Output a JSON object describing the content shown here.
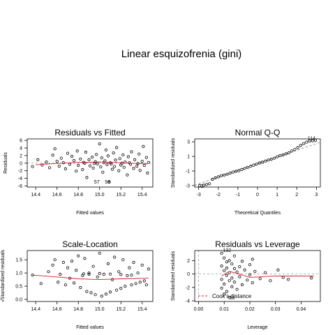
{
  "figure_title": "Linear esquizofrenia (gini)",
  "chart_data": [
    {
      "type": "scatter",
      "title": "Residuals vs Fitted",
      "xlabel": "Fitted values",
      "ylabel": "Residuals",
      "xlim": [
        14.32,
        15.5
      ],
      "ylim": [
        -6.3,
        6.4
      ],
      "xticks": [
        "14.4",
        "14.6",
        "14.8",
        "15.0",
        "15.2",
        "15.4"
      ],
      "xtick_values": [
        14.4,
        14.6,
        14.8,
        15.0,
        15.2,
        15.4
      ],
      "yticks": [
        "-6",
        "-4",
        "-2",
        "0",
        "2",
        "4",
        "6"
      ],
      "ytick_values": [
        -6,
        -4,
        -2,
        0,
        2,
        4,
        6
      ],
      "reference_line": 0,
      "point_labels": [
        "57",
        "58"
      ],
      "smooth_line": [
        [
          14.4,
          -0.4
        ],
        [
          14.6,
          -0.1
        ],
        [
          14.8,
          0.2
        ],
        [
          15.0,
          0.3
        ],
        [
          15.2,
          0.1
        ],
        [
          15.45,
          -0.2
        ]
      ],
      "points": [
        [
          14.37,
          -0.9
        ],
        [
          14.42,
          0.9
        ],
        [
          14.46,
          -0.5
        ],
        [
          14.5,
          0.3
        ],
        [
          14.53,
          -1.2
        ],
        [
          14.56,
          2.1
        ],
        [
          14.58,
          3.8
        ],
        [
          14.6,
          0.5
        ],
        [
          14.62,
          -0.8
        ],
        [
          14.64,
          1.3
        ],
        [
          14.66,
          0.1
        ],
        [
          14.68,
          -1.5
        ],
        [
          14.7,
          2.6
        ],
        [
          14.72,
          -0.3
        ],
        [
          14.74,
          1.8
        ],
        [
          14.76,
          0.7
        ],
        [
          14.78,
          -2.1
        ],
        [
          14.79,
          3.2
        ],
        [
          14.8,
          -0.6
        ],
        [
          14.82,
          1.1
        ],
        [
          14.84,
          -1.7
        ],
        [
          14.85,
          0.2
        ],
        [
          14.87,
          2.9
        ],
        [
          14.88,
          -3.8
        ],
        [
          14.9,
          0.9
        ],
        [
          14.91,
          -0.7
        ],
        [
          14.93,
          1.6
        ],
        [
          14.94,
          -1.3
        ],
        [
          14.96,
          0.4
        ],
        [
          14.97,
          2.3
        ],
        [
          14.98,
          -0.2
        ],
        [
          15.0,
          5.1
        ],
        [
          15.01,
          -1.0
        ],
        [
          15.02,
          1.4
        ],
        [
          15.03,
          -2.4
        ],
        [
          15.05,
          0.6
        ],
        [
          15.06,
          3.5
        ],
        [
          15.07,
          -0.4
        ],
        [
          15.08,
          1.9
        ],
        [
          15.09,
          -5.0
        ],
        [
          15.1,
          0.1
        ],
        [
          15.12,
          -1.6
        ],
        [
          15.13,
          2.7
        ],
        [
          15.14,
          -0.9
        ],
        [
          15.15,
          0.8
        ],
        [
          15.16,
          4.1
        ],
        [
          15.18,
          -2.0
        ],
        [
          15.19,
          1.2
        ],
        [
          15.2,
          -0.5
        ],
        [
          15.22,
          2.2
        ],
        [
          15.23,
          -1.1
        ],
        [
          15.24,
          0.3
        ],
        [
          15.26,
          -3.1
        ],
        [
          15.27,
          1.7
        ],
        [
          15.29,
          -0.3
        ],
        [
          15.3,
          3.0
        ],
        [
          15.32,
          -1.4
        ],
        [
          15.33,
          0.9
        ],
        [
          15.35,
          -0.8
        ],
        [
          15.37,
          2.4
        ],
        [
          15.38,
          -1.9
        ],
        [
          15.4,
          0.5
        ],
        [
          15.41,
          4.4
        ],
        [
          15.42,
          -0.6
        ],
        [
          15.44,
          1.5
        ],
        [
          15.45,
          -2.6
        ],
        [
          15.46,
          0.2
        ],
        [
          14.86,
          0.0
        ],
        [
          14.95,
          -0.1
        ],
        [
          15.04,
          0.1
        ],
        [
          15.11,
          -0.2
        ],
        [
          15.21,
          0.0
        ],
        [
          15.28,
          0.1
        ],
        [
          15.36,
          -0.1
        ]
      ]
    },
    {
      "type": "scatter",
      "title": "Normal Q-Q",
      "xlabel": "Theoretical Quantiles",
      "ylabel": "Standardized residuals",
      "xlim": [
        -3.2,
        3.2
      ],
      "ylim": [
        -3.2,
        3.4
      ],
      "xticks": [
        "-3",
        "-2",
        "-1",
        "0",
        "1",
        "2",
        "3"
      ],
      "xtick_values": [
        -3,
        -2,
        -1,
        0,
        1,
        2,
        3
      ],
      "yticks": [
        "-3",
        "-1",
        "1",
        "3"
      ],
      "ytick_values": [
        -3,
        -1,
        1,
        3
      ],
      "reference_line": "y = 0.92x",
      "point_labels": [
        "2",
        "114"
      ],
      "points": [
        [
          -2.95,
          -3.0
        ],
        [
          -2.75,
          -2.95
        ],
        [
          -2.6,
          -2.85
        ],
        [
          -2.45,
          -2.75
        ],
        [
          -2.3,
          -2.15
        ],
        [
          -2.15,
          -1.95
        ],
        [
          -2.0,
          -1.8
        ],
        [
          -1.85,
          -1.65
        ],
        [
          -1.7,
          -1.55
        ],
        [
          -1.55,
          -1.45
        ],
        [
          -1.4,
          -1.3
        ],
        [
          -1.25,
          -1.15
        ],
        [
          -1.1,
          -1.05
        ],
        [
          -0.95,
          -0.95
        ],
        [
          -0.8,
          -0.8
        ],
        [
          -0.65,
          -0.65
        ],
        [
          -0.5,
          -0.5
        ],
        [
          -0.35,
          -0.35
        ],
        [
          -0.2,
          -0.2
        ],
        [
          -0.05,
          -0.05
        ],
        [
          0.1,
          0.1
        ],
        [
          0.25,
          0.2
        ],
        [
          0.4,
          0.35
        ],
        [
          0.55,
          0.5
        ],
        [
          0.7,
          0.6
        ],
        [
          0.85,
          0.75
        ],
        [
          1.0,
          0.95
        ],
        [
          1.15,
          1.1
        ],
        [
          1.3,
          1.2
        ],
        [
          1.45,
          1.35
        ],
        [
          1.6,
          1.5
        ],
        [
          1.75,
          1.75
        ],
        [
          1.9,
          1.95
        ],
        [
          2.05,
          2.2
        ],
        [
          2.2,
          2.5
        ],
        [
          2.35,
          2.75
        ],
        [
          2.5,
          2.95
        ],
        [
          2.65,
          3.1
        ],
        [
          2.8,
          3.15
        ],
        [
          2.95,
          3.2
        ]
      ]
    },
    {
      "type": "scatter",
      "title": "Scale-Location",
      "xlabel": "Fitted values",
      "ylabel": "√Standardized residuals",
      "xlim": [
        14.32,
        15.5
      ],
      "ylim": [
        -0.08,
        1.85
      ],
      "xticks": [
        "14.4",
        "14.6",
        "14.8",
        "15.0",
        "15.2",
        "15.4"
      ],
      "xtick_values": [
        14.4,
        14.6,
        14.8,
        15.0,
        15.2,
        15.4
      ],
      "yticks": [
        "0.0",
        "0.5",
        "1.0",
        "1.5"
      ],
      "ytick_values": [
        0.0,
        0.5,
        1.0,
        1.5
      ],
      "smooth_line": [
        [
          14.37,
          0.92
        ],
        [
          14.6,
          0.85
        ],
        [
          14.8,
          0.78
        ],
        [
          15.0,
          0.75
        ],
        [
          15.2,
          0.78
        ],
        [
          15.46,
          0.8
        ]
      ],
      "points": [
        [
          14.37,
          0.92
        ],
        [
          14.45,
          0.6
        ],
        [
          14.52,
          1.05
        ],
        [
          14.56,
          1.3
        ],
        [
          14.58,
          1.5
        ],
        [
          14.61,
          0.65
        ],
        [
          14.63,
          0.95
        ],
        [
          14.66,
          1.4
        ],
        [
          14.68,
          0.55
        ],
        [
          14.7,
          1.2
        ],
        [
          14.72,
          0.8
        ],
        [
          14.74,
          1.45
        ],
        [
          14.76,
          0.62
        ],
        [
          14.78,
          1.1
        ],
        [
          14.8,
          1.65
        ],
        [
          14.82,
          0.45
        ],
        [
          14.84,
          0.9
        ],
        [
          14.86,
          1.55
        ],
        [
          14.88,
          0.3
        ],
        [
          14.9,
          1.0
        ],
        [
          14.92,
          0.25
        ],
        [
          14.94,
          1.25
        ],
        [
          14.96,
          0.18
        ],
        [
          14.98,
          0.85
        ],
        [
          15.0,
          1.75
        ],
        [
          15.02,
          0.12
        ],
        [
          15.04,
          0.95
        ],
        [
          15.06,
          0.2
        ],
        [
          15.08,
          1.35
        ],
        [
          15.1,
          0.28
        ],
        [
          15.12,
          0.75
        ],
        [
          15.14,
          1.6
        ],
        [
          15.16,
          0.35
        ],
        [
          15.18,
          1.05
        ],
        [
          15.2,
          0.42
        ],
        [
          15.22,
          1.5
        ],
        [
          15.24,
          0.5
        ],
        [
          15.26,
          0.9
        ],
        [
          15.28,
          1.2
        ],
        [
          15.3,
          0.55
        ],
        [
          15.32,
          1.4
        ],
        [
          15.34,
          0.6
        ],
        [
          15.36,
          1.0
        ],
        [
          15.38,
          0.65
        ],
        [
          15.4,
          1.3
        ],
        [
          15.42,
          0.7
        ],
        [
          15.44,
          0.55
        ],
        [
          15.46,
          1.15
        ],
        [
          14.9,
          0.95
        ],
        [
          15.0,
          0.98
        ],
        [
          15.1,
          0.96
        ],
        [
          15.2,
          0.94
        ],
        [
          15.3,
          0.92
        ],
        [
          14.85,
          0.97
        ]
      ]
    },
    {
      "type": "scatter",
      "title": "Residuals vs Leverage",
      "xlabel": "Leverage",
      "ylabel": "Standardized residuals",
      "xlim": [
        -0.0015,
        0.0475
      ],
      "ylim": [
        -4.1,
        3.5
      ],
      "xticks": [
        "0.00",
        "0.01",
        "0.02",
        "0.03",
        "0.04"
      ],
      "xtick_values": [
        0.0,
        0.01,
        0.02,
        0.03,
        0.04
      ],
      "yticks": [
        "-4",
        "-2",
        "0",
        "2"
      ],
      "ytick_values": [
        -4,
        -2,
        0,
        2
      ],
      "legend": "Cook's distance",
      "legend_position": "bottom-left",
      "point_labels": [
        "132",
        "58"
      ],
      "smooth_line": [
        [
          0.009,
          -0.3
        ],
        [
          0.012,
          0.4
        ],
        [
          0.015,
          0.1
        ],
        [
          0.02,
          -0.5
        ],
        [
          0.03,
          -0.3
        ],
        [
          0.045,
          -0.3
        ]
      ],
      "points": [
        [
          0.009,
          3.1
        ],
        [
          0.009,
          1.2
        ],
        [
          0.009,
          -0.8
        ],
        [
          0.009,
          -2.1
        ],
        [
          0.01,
          2.4
        ],
        [
          0.01,
          0.5
        ],
        [
          0.01,
          -1.5
        ],
        [
          0.01,
          -3.0
        ],
        [
          0.011,
          1.8
        ],
        [
          0.011,
          -0.2
        ],
        [
          0.011,
          -2.6
        ],
        [
          0.011,
          0.9
        ],
        [
          0.012,
          2.0
        ],
        [
          0.012,
          -1.0
        ],
        [
          0.012,
          0.2
        ],
        [
          0.012,
          -3.5
        ],
        [
          0.013,
          1.5
        ],
        [
          0.013,
          -0.6
        ],
        [
          0.013,
          -1.9
        ],
        [
          0.014,
          0.8
        ],
        [
          0.014,
          2.7
        ],
        [
          0.014,
          -1.2
        ],
        [
          0.015,
          0.3
        ],
        [
          0.015,
          -2.3
        ],
        [
          0.016,
          1.1
        ],
        [
          0.016,
          -0.4
        ],
        [
          0.017,
          1.9
        ],
        [
          0.017,
          -1.6
        ],
        [
          0.018,
          0.6
        ],
        [
          0.019,
          -0.9
        ],
        [
          0.02,
          1.4
        ],
        [
          0.02,
          -0.1
        ],
        [
          0.021,
          2.2
        ],
        [
          0.021,
          -1.3
        ],
        [
          0.022,
          0.4
        ],
        [
          0.024,
          -0.7
        ],
        [
          0.026,
          0.2
        ],
        [
          0.028,
          -1.0
        ],
        [
          0.031,
          0.6
        ],
        [
          0.033,
          -0.5
        ],
        [
          0.035,
          -0.8
        ],
        [
          0.044,
          -0.6
        ]
      ]
    }
  ]
}
